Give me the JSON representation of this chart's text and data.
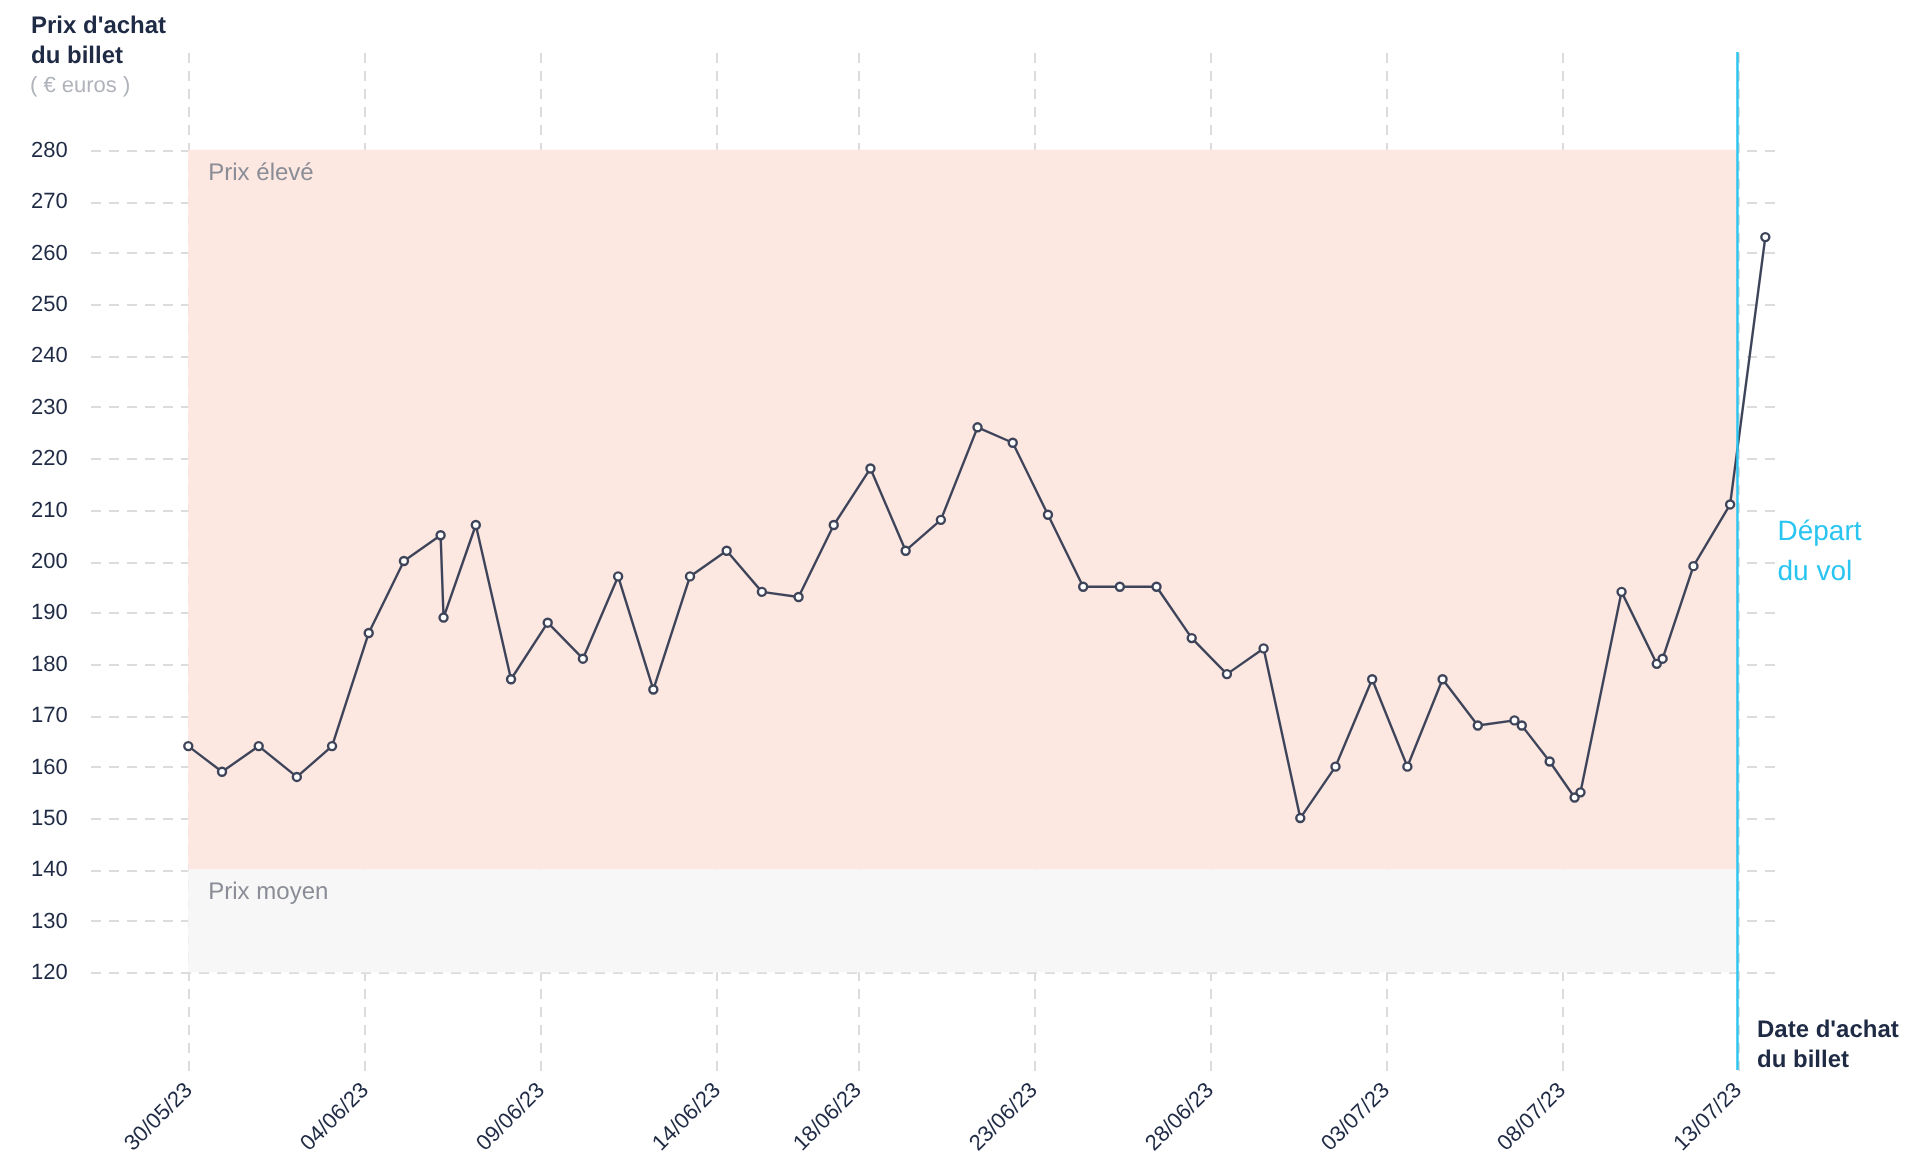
{
  "chart_data": {
    "type": "line",
    "ylabel": "Prix d'achat du billet",
    "xlabel": "Date d'achat du billet",
    "annotations": [
      "( € euros )"
    ],
    "x": [
      "--05-30T00:00",
      "--05-30T23:00",
      "--06-01T00:00",
      "--06-02T02:00",
      "--06-03T02:00",
      "--06-04T03:00",
      "--06-05T03:00",
      "--06-06T04:00",
      "--06-06T06:00",
      "--06-07T04:00",
      "--06-08T04:00",
      "--06-09T05:00",
      "--06-10T05:00",
      "--06-11T05:00",
      "--06-12T05:00",
      "--06-13T06:00",
      "--06-14T07:00",
      "--06-15T07:00",
      "--06-16T08:00",
      "--06-17T08:00",
      "--06-18T09:00",
      "--06-19T09:00",
      "--06-20T09:00",
      "--06-21T10:00",
      "--06-22T10:00",
      "--06-23T10:00",
      "--06-24T10:00",
      "--06-25T11:00",
      "--06-26T12:00",
      "--06-27T12:00",
      "--06-28T12:00",
      "--06-29T13:00",
      "--06-30T14:00",
      "--07-01T14:00",
      "--07-02T15:00",
      "--07-03T15:00",
      "--07-04T15:00",
      "--07-05T15:00",
      "--07-06T16:00",
      "--07-06T21:00",
      "--07-07T16:00",
      "--07-08T09:00",
      "--07-08T13:00",
      "--07-09T17:00",
      "--07-10T17:00",
      "--07-10T21:00",
      "--07-11T18:00",
      "--07-12T19:00",
      "--07-13T19:00"
    ],
    "series": [
      {
        "color": "#3d4459",
        "values": [
          164,
          159,
          164,
          158,
          164,
          186,
          200,
          205,
          189,
          207,
          177,
          188,
          181,
          197,
          175,
          197,
          202,
          194,
          193,
          207,
          218,
          202,
          208,
          226,
          223,
          209,
          195,
          195,
          195,
          185,
          178,
          183,
          150,
          160,
          177,
          160,
          177,
          168,
          169,
          168,
          161,
          154,
          155,
          194,
          180,
          181,
          199,
          211,
          263
        ]
      }
    ],
    "xlim": [
      "--05-27T05:00",
      "--07-14T05:00"
    ],
    "ylim": [
      101,
      299
    ],
    "xticks": [
      {
        "value": "--05-30",
        "label": "30/05/23"
      },
      {
        "value": "--06-04",
        "label": "04/06/23"
      },
      {
        "value": "--06-09",
        "label": "09/06/23"
      },
      {
        "value": "--06-14",
        "label": "14/06/23"
      },
      {
        "value": "--06-18",
        "label": "18/06/23"
      },
      {
        "value": "--06-23",
        "label": "23/06/23"
      },
      {
        "value": "--06-28",
        "label": "28/06/23"
      },
      {
        "value": "--07-03",
        "label": "03/07/23"
      },
      {
        "value": "--07-08",
        "label": "08/07/23"
      },
      {
        "value": "--07-13",
        "label": "13/07/23"
      }
    ],
    "yticks": [
      120,
      130,
      140,
      150,
      160,
      170,
      180,
      190,
      200,
      210,
      220,
      230,
      240,
      250,
      260,
      270,
      280
    ],
    "bands": [
      {
        "axis": "y",
        "from": 140,
        "to": 280,
        "label": "Prix élevé",
        "color": "#fde7e1"
      },
      {
        "axis": "y",
        "from": 120,
        "to": 140,
        "label": "Prix moyen",
        "color": "#f7f7f7"
      }
    ],
    "ref_lines": [
      {
        "axis": "x",
        "value": "--07-13",
        "label": "Départ du vol",
        "color": "#29c5f0"
      }
    ],
    "grid": true,
    "marker": "circle",
    "line_style": "solid"
  }
}
